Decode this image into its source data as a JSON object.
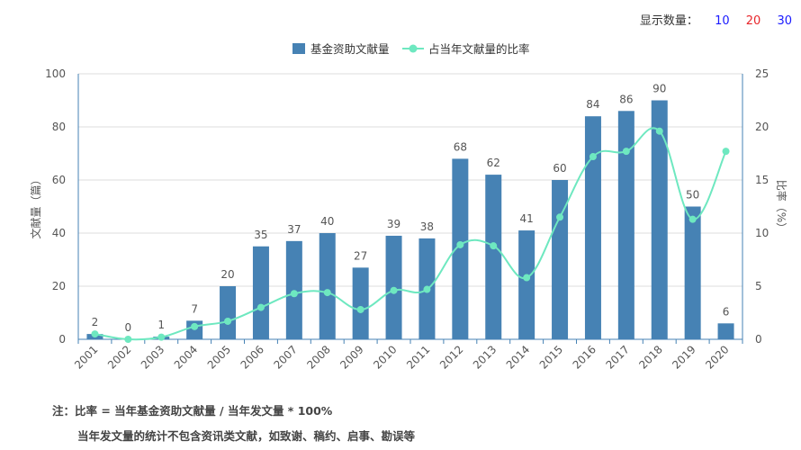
{
  "count_selector": {
    "label": "显示数量：",
    "options": [
      "10",
      "20",
      "30"
    ]
  },
  "notes": {
    "line1": "注：比率 = 当年基金资助文献量 / 当年发文量 * 100%",
    "line2": "当年发文量的统计不包含资讯类文献，如致谢、稿约、启事、勘误等"
  },
  "colors": {
    "bar": "#4682b4",
    "line": "#6ee8c0",
    "axis": "#4682b4",
    "grid": "#dcdcdc",
    "text": "#555555"
  },
  "chart_data": {
    "type": "bar",
    "categories": [
      "2001",
      "2002",
      "2003",
      "2004",
      "2005",
      "2006",
      "2007",
      "2008",
      "2009",
      "2010",
      "2011",
      "2012",
      "2013",
      "2014",
      "2015",
      "2016",
      "2017",
      "2018",
      "2019",
      "2020"
    ],
    "series": [
      {
        "name": "基金资助文献量",
        "type": "bar",
        "axis": "left",
        "values": [
          2,
          0,
          1,
          7,
          20,
          35,
          37,
          40,
          27,
          39,
          38,
          68,
          62,
          41,
          60,
          84,
          86,
          90,
          50,
          6
        ]
      },
      {
        "name": "占当年文献量的比率",
        "type": "line",
        "axis": "right",
        "values": [
          0.5,
          0.0,
          0.2,
          1.2,
          1.7,
          3.0,
          4.3,
          4.4,
          2.8,
          4.6,
          4.7,
          8.9,
          8.8,
          5.8,
          11.5,
          17.2,
          17.7,
          19.6,
          11.3,
          17.7
        ]
      }
    ],
    "ylabel": "文献量（篇）",
    "y2label": "比率（%）",
    "ylim": [
      0,
      100
    ],
    "yticks": [
      0,
      20,
      40,
      60,
      80,
      100
    ],
    "y2lim": [
      0,
      25
    ],
    "y2ticks": [
      0,
      5,
      10,
      15,
      20,
      25
    ],
    "legend_position": "top-center",
    "grid": true
  }
}
